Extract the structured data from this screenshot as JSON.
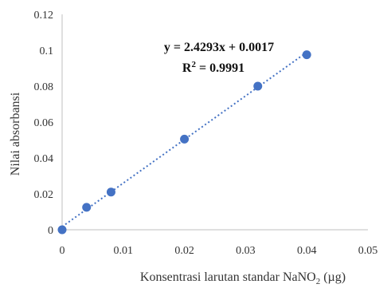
{
  "chart_data": {
    "type": "scatter",
    "x": [
      0,
      0.004,
      0.008,
      0.02,
      0.032,
      0.04
    ],
    "y": [
      0,
      0.0125,
      0.021,
      0.0505,
      0.08,
      0.0975
    ],
    "xlim": [
      0,
      0.05
    ],
    "ylim": [
      0,
      0.12
    ],
    "xticks": [
      0,
      0.01,
      0.02,
      0.03,
      0.04,
      0.05
    ],
    "yticks": [
      0,
      0.02,
      0.04,
      0.06,
      0.08,
      0.1,
      0.12
    ],
    "xtick_labels": [
      "0",
      "0.01",
      "0.02",
      "0.03",
      "0.04",
      "0.05"
    ],
    "ytick_labels": [
      "0",
      "0.02",
      "0.04",
      "0.06",
      "0.08",
      "0.1",
      "0.12"
    ],
    "xlabel_main": "Konsentrasi larutan standar NaNO",
    "xlabel_sub": "2",
    "xlabel_tail": " (µg)",
    "ylabel": "Nilai absorbansi",
    "grid": false,
    "trendline": {
      "type": "linear",
      "slope": 2.4293,
      "intercept": 0.0017,
      "equation": "y = 2.4293x + 0.0017",
      "r2_prefix": "R",
      "r2_sup": "2",
      "r2_value": " = 0.9991"
    },
    "colors": {
      "points": "#4472C4",
      "trendline": "#4472C4",
      "axis": "#bfbfbf"
    }
  }
}
